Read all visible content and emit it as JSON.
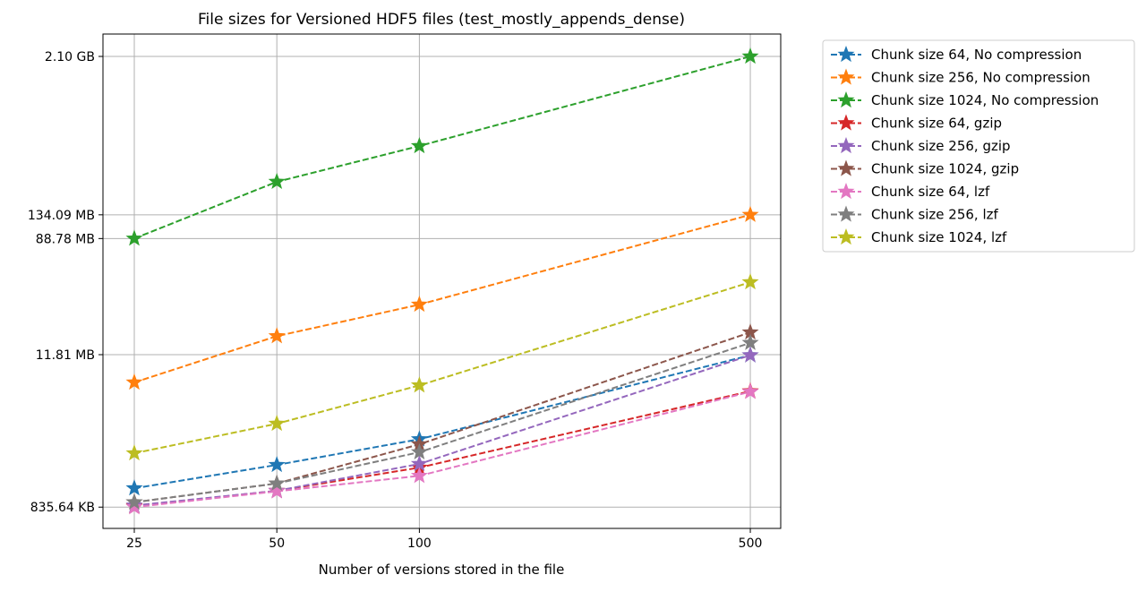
{
  "chart_data": {
    "type": "line",
    "title": "File sizes for Versioned HDF5 files (test_mostly_appends_dense)",
    "xlabel": "Number of versions stored in the file",
    "ylabel": "",
    "x_scale": "log",
    "y_scale": "log",
    "y_unit": "MB",
    "x": [
      25,
      50,
      100,
      500
    ],
    "x_tick_labels": [
      "25",
      "50",
      "100",
      "500"
    ],
    "y_ticks": [
      0.83564,
      11.81,
      88.78,
      134.09,
      2100
    ],
    "y_tick_labels": [
      "835.64 KB",
      "11.81 MB",
      "88.78 MB",
      "134.09 MB",
      "2.10 GB"
    ],
    "grid": true,
    "legend_position": "outside-right-top",
    "marker": "star",
    "line_style": "dashed",
    "series": [
      {
        "name": "Chunk size 64, No compression",
        "color": "#1f77b4",
        "values": [
          1.16,
          1.74,
          2.72,
          11.7
        ]
      },
      {
        "name": "Chunk size 256, No compression",
        "color": "#ff7f0e",
        "values": [
          7.29,
          16.3,
          28.2,
          134.09
        ]
      },
      {
        "name": "Chunk size 1024, No compression",
        "color": "#2ca02c",
        "values": [
          88.78,
          238,
          443,
          2100
        ]
      },
      {
        "name": "Chunk size 64, gzip",
        "color": "#d62728",
        "values": [
          0.85,
          1.11,
          1.66,
          6.26
        ]
      },
      {
        "name": "Chunk size 256, gzip",
        "color": "#9467bd",
        "values": [
          0.86,
          1.11,
          1.77,
          11.7
        ]
      },
      {
        "name": "Chunk size 1024, gzip",
        "color": "#8c564b",
        "values": [
          0.91,
          1.26,
          2.49,
          17.4
        ]
      },
      {
        "name": "Chunk size 64, lzf",
        "color": "#e377c2",
        "values": [
          0.8356,
          1.1,
          1.44,
          6.2
        ]
      },
      {
        "name": "Chunk size 256, lzf",
        "color": "#7f7f7f",
        "values": [
          0.91,
          1.26,
          2.17,
          14.5
        ]
      },
      {
        "name": "Chunk size 1024, lzf",
        "color": "#bcbd22",
        "values": [
          2.13,
          3.56,
          6.93,
          41.6
        ]
      }
    ]
  }
}
